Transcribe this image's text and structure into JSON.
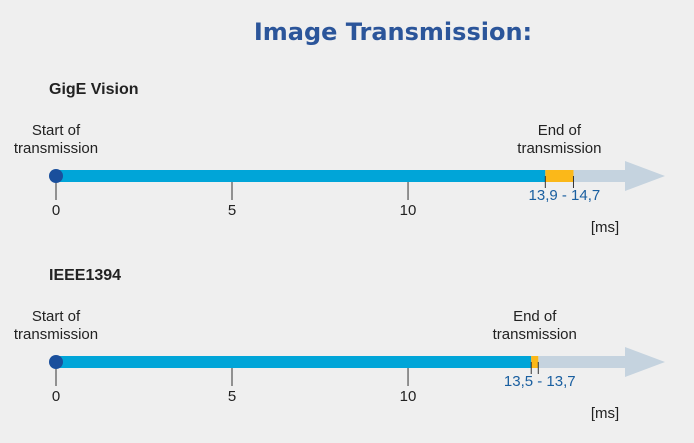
{
  "title": "Image Transmission:",
  "chart_data": [
    {
      "type": "timeline",
      "title": "GigE Vision",
      "start_label": [
        "Start of",
        "transmission"
      ],
      "end_label": [
        "End of",
        "transmission"
      ],
      "range": [
        13.9,
        14.7
      ],
      "range_label": "13,9 - 14,7",
      "xlim": [
        0,
        17.3
      ],
      "xticks": [
        0,
        5,
        10
      ],
      "xlabel": "[ms]",
      "color": "#00a5d8",
      "range_color": "#fbb819",
      "arrow_color": "#c5d3df"
    },
    {
      "type": "timeline",
      "title": "IEEE1394",
      "start_label": [
        "Start of",
        "transmission"
      ],
      "end_label": [
        "End of",
        "transmission"
      ],
      "range": [
        13.5,
        13.7
      ],
      "range_label": "13,5 - 13,7",
      "xlim": [
        0,
        17.3
      ],
      "xticks": [
        0,
        5,
        10
      ],
      "xlabel": "[ms]",
      "color": "#00a5d8",
      "range_color": "#fbb819",
      "arrow_color": "#c5d3df"
    }
  ]
}
